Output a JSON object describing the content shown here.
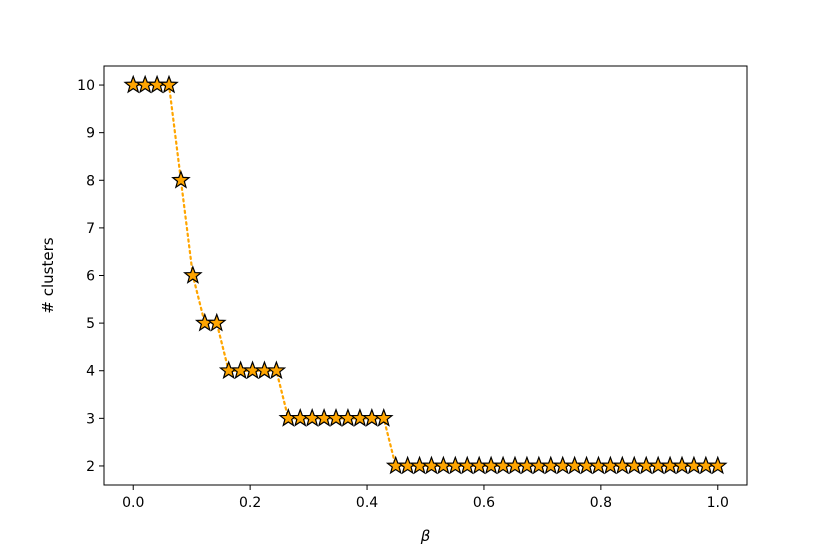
{
  "chart_data": {
    "type": "line",
    "title": "",
    "xlabel": "β",
    "ylabel": "# clusters",
    "xlim": [
      -0.05,
      1.05
    ],
    "ylim": [
      1.6,
      10.4
    ],
    "xticks": [
      0.0,
      0.2,
      0.4,
      0.6,
      0.8,
      1.0
    ],
    "xtick_labels": [
      "0.0",
      "0.2",
      "0.4",
      "0.6",
      "0.8",
      "1.0"
    ],
    "yticks": [
      2,
      3,
      4,
      5,
      6,
      7,
      8,
      9,
      10
    ],
    "ytick_labels": [
      "2",
      "3",
      "4",
      "5",
      "6",
      "7",
      "8",
      "9",
      "10"
    ],
    "grid": false,
    "legend": "none",
    "series": [
      {
        "line_style": "dotted",
        "marker": "star",
        "color": "#ffa500",
        "marker_edge_color": "#000000",
        "x": [
          0.0,
          0.0204,
          0.0408,
          0.0612,
          0.0816,
          0.102,
          0.1224,
          0.1429,
          0.1633,
          0.1837,
          0.2041,
          0.2245,
          0.2449,
          0.2653,
          0.2857,
          0.3061,
          0.3265,
          0.3469,
          0.3673,
          0.3878,
          0.4082,
          0.4286,
          0.449,
          0.4694,
          0.4898,
          0.5102,
          0.5306,
          0.551,
          0.5714,
          0.5918,
          0.6122,
          0.6327,
          0.6531,
          0.6735,
          0.6939,
          0.7143,
          0.7347,
          0.7551,
          0.7755,
          0.7959,
          0.8163,
          0.8367,
          0.8571,
          0.8776,
          0.898,
          0.9184,
          0.9388,
          0.9592,
          0.9796,
          1.0
        ],
        "y": [
          10,
          10,
          10,
          10,
          8,
          6,
          5,
          5,
          4,
          4,
          4,
          4,
          4,
          3,
          3,
          3,
          3,
          3,
          3,
          3,
          3,
          3,
          2,
          2,
          2,
          2,
          2,
          2,
          2,
          2,
          2,
          2,
          2,
          2,
          2,
          2,
          2,
          2,
          2,
          2,
          2,
          2,
          2,
          2,
          2,
          2,
          2,
          2,
          2,
          2
        ]
      }
    ]
  }
}
